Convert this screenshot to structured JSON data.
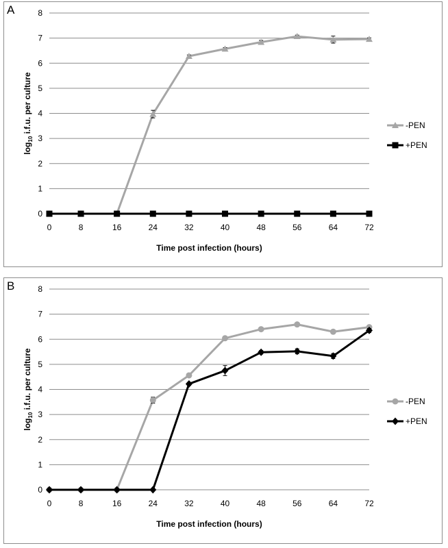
{
  "chart_data": [
    {
      "type": "line",
      "panel_label": "A",
      "x": [
        1,
        8,
        16,
        24,
        32,
        40,
        48,
        56,
        64,
        72
      ],
      "x_tick_labels": [
        "0",
        "8",
        "16",
        "24",
        "32",
        "40",
        "48",
        "56",
        "64",
        "72"
      ],
      "y_tick_labels": [
        "0",
        "1",
        "2",
        "3",
        "4",
        "5",
        "6",
        "7",
        "8"
      ],
      "ylim": [
        0,
        8
      ],
      "ylabel_main": "log",
      "ylabel_sub": "10",
      "ylabel_rest": " i.f.u. per culture",
      "xlabel": "Time post infection (hours)",
      "grid": true,
      "legend_position": "right",
      "series": [
        {
          "name": "-PEN",
          "color": "#a6a6a6",
          "marker": "triangle",
          "values": [
            0,
            0,
            0,
            3.97,
            6.28,
            6.57,
            6.84,
            7.07,
            6.94,
            6.96
          ],
          "errors": [
            0,
            0,
            0,
            0.15,
            0.05,
            0.05,
            0.07,
            0.05,
            0.14,
            0.05
          ]
        },
        {
          "name": "+PEN",
          "color": "#000000",
          "marker": "square",
          "values": [
            0,
            0,
            0,
            0,
            0,
            0,
            0,
            0,
            0,
            0
          ],
          "errors": [
            0,
            0,
            0,
            0,
            0,
            0,
            0,
            0,
            0,
            0
          ]
        }
      ]
    },
    {
      "type": "line",
      "panel_label": "B",
      "x": [
        1,
        8,
        16,
        24,
        32,
        40,
        48,
        56,
        64,
        72
      ],
      "x_tick_labels": [
        "0",
        "8",
        "16",
        "24",
        "32",
        "40",
        "48",
        "56",
        "64",
        "72"
      ],
      "y_tick_labels": [
        "0",
        "1",
        "2",
        "3",
        "4",
        "5",
        "6",
        "7",
        "8"
      ],
      "ylim": [
        0,
        8
      ],
      "ylabel_main": "log",
      "ylabel_sub": "10",
      "ylabel_rest": " i.f.u. per culture",
      "xlabel": "Time post infection (hours)",
      "grid": true,
      "legend_position": "right",
      "series": [
        {
          "name": "-PEN",
          "color": "#a6a6a6",
          "marker": "circle",
          "values": [
            0,
            0,
            0,
            3.57,
            4.56,
            6.04,
            6.4,
            6.59,
            6.3,
            6.48
          ],
          "errors": [
            0,
            0,
            0,
            0.12,
            0.06,
            0.04,
            0.04,
            0.04,
            0.04,
            0.05
          ]
        },
        {
          "name": "+PEN",
          "color": "#000000",
          "marker": "diamond",
          "values": [
            0,
            0,
            0,
            0,
            4.22,
            4.75,
            5.48,
            5.52,
            5.33,
            6.35
          ],
          "errors": [
            0,
            0,
            0,
            0,
            0.06,
            0.2,
            0.07,
            0.1,
            0.1,
            0.08
          ]
        }
      ]
    }
  ]
}
